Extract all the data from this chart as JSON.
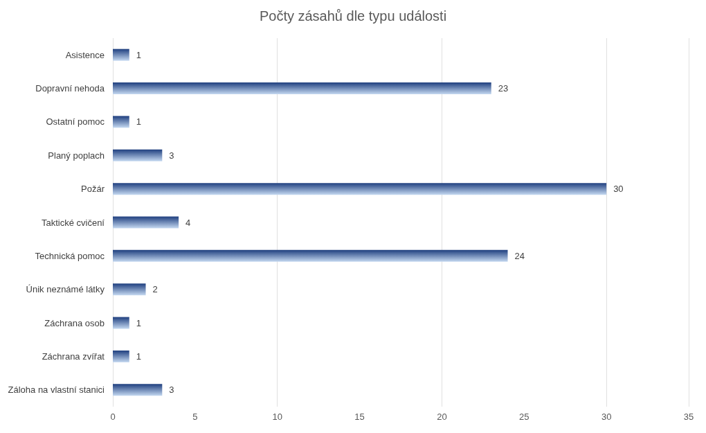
{
  "chart_data": {
    "type": "bar",
    "orientation": "horizontal",
    "title": "Počty zásahů dle typu události",
    "categories": [
      "Asistence",
      "Dopravní nehoda",
      "Ostatní pomoc",
      "Planý poplach",
      "Požár",
      "Taktické cvičení",
      "Technická pomoc",
      "Únik neznámé látky",
      "Záchrana osob",
      "Záchrana zvířat",
      "Záloha na vlastní stanici"
    ],
    "values": [
      1,
      23,
      1,
      3,
      30,
      4,
      24,
      2,
      1,
      1,
      3
    ],
    "color": "#1f3f7f",
    "xlim": [
      0,
      35
    ],
    "xticks": [
      0,
      5,
      10,
      15,
      20,
      25,
      30,
      35
    ],
    "grid": "x",
    "data_labels": true
  }
}
